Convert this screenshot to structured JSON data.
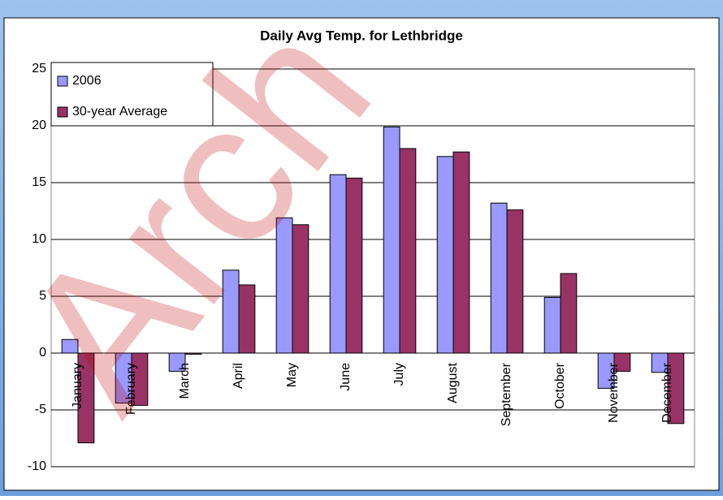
{
  "watermark": "Arch",
  "chart_data": {
    "type": "bar",
    "title": "Daily Avg Temp. for Lethbridge",
    "categories": [
      "January",
      "February",
      "March",
      "April",
      "May",
      "June",
      "July",
      "August",
      "September",
      "October",
      "November",
      "December"
    ],
    "series": [
      {
        "name": "2006",
        "color": "#9999ff",
        "values": [
          1.2,
          -4.4,
          -1.6,
          7.3,
          11.9,
          15.7,
          19.9,
          17.3,
          13.2,
          4.9,
          -3.1,
          -1.7
        ]
      },
      {
        "name": "30-year Average",
        "color": "#993366",
        "values": [
          -7.9,
          -4.6,
          -0.1,
          6.0,
          11.3,
          15.4,
          18.0,
          17.7,
          12.6,
          7.0,
          -1.6,
          -6.2
        ]
      }
    ],
    "ylim": [
      -10,
      25
    ],
    "yticks": [
      -10,
      -5,
      0,
      5,
      10,
      15,
      20,
      25
    ],
    "grid": true,
    "legend": "top-left"
  }
}
